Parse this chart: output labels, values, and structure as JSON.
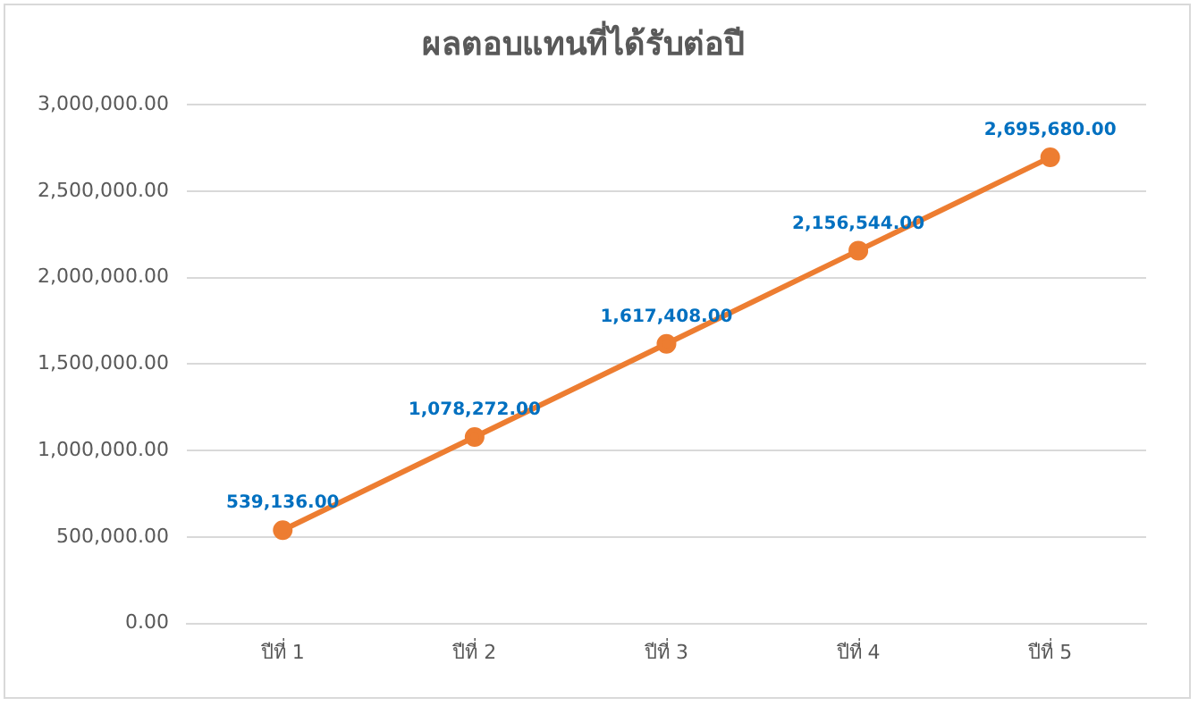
{
  "chart_data": {
    "type": "line",
    "title": "ผลตอบแทนที่ได้รับต่อปี",
    "categories": [
      "ปีที่ 1",
      "ปีที่ 2",
      "ปีที่ 3",
      "ปีที่ 4",
      "ปีที่ 5"
    ],
    "series": [
      {
        "color": "#ed7d31",
        "values": [
          539136,
          1078272,
          1617408,
          2156544,
          2695680
        ],
        "value_labels": [
          "539,136.00",
          "1,078,272.00",
          "1,617,408.00",
          "2,156,544.00",
          "2,695,680.00"
        ]
      }
    ],
    "ylim": [
      0,
      3000000
    ],
    "yticks": [
      {
        "value": 0,
        "label": "0.00"
      },
      {
        "value": 500000,
        "label": "500,000.00"
      },
      {
        "value": 1000000,
        "label": "1,000,000.00"
      },
      {
        "value": 1500000,
        "label": "1,500,000.00"
      },
      {
        "value": 2000000,
        "label": "2,000,000.00"
      },
      {
        "value": 2500000,
        "label": "2,500,000.00"
      },
      {
        "value": 3000000,
        "label": "3,000,000.00"
      }
    ],
    "grid": "y",
    "marker": "circle",
    "line_style": "solid",
    "legend": false
  }
}
